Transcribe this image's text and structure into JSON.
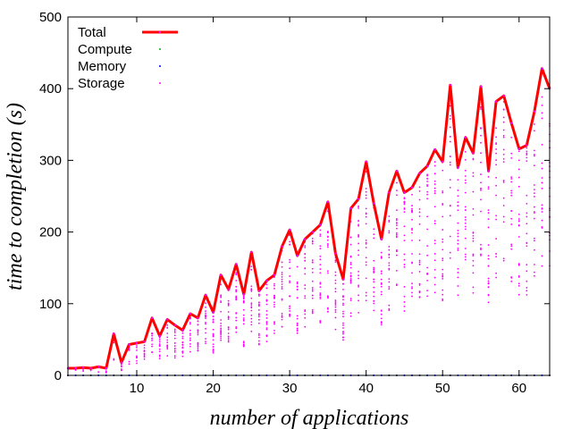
{
  "chart_data": {
    "type": "line",
    "xlabel": "number of applications",
    "ylabel": "time to completion (s)",
    "xlim": [
      1,
      64
    ],
    "ylim": [
      0,
      500
    ],
    "xticks": [
      10,
      20,
      30,
      40,
      50,
      60
    ],
    "yticks": [
      0,
      100,
      200,
      300,
      400,
      500
    ],
    "grid": false,
    "legend_position": "top-left",
    "series": [
      {
        "name": "Total",
        "style": "line",
        "color": "#ff0000",
        "x": [
          1,
          2,
          3,
          4,
          5,
          6,
          7,
          8,
          9,
          10,
          11,
          12,
          13,
          14,
          15,
          16,
          17,
          18,
          19,
          20,
          21,
          22,
          23,
          24,
          25,
          26,
          27,
          28,
          29,
          30,
          31,
          32,
          33,
          34,
          35,
          36,
          37,
          38,
          39,
          40,
          41,
          42,
          43,
          44,
          45,
          46,
          47,
          48,
          49,
          50,
          51,
          52,
          53,
          54,
          55,
          56,
          57,
          58,
          59,
          60,
          61,
          62,
          63,
          64
        ],
        "values": [
          10,
          10,
          11,
          10,
          12,
          10,
          58,
          18,
          43,
          45,
          47,
          80,
          55,
          78,
          70,
          63,
          86,
          80,
          112,
          88,
          140,
          120,
          155,
          113,
          172,
          118,
          132,
          140,
          180,
          203,
          167,
          190,
          200,
          210,
          242,
          170,
          134,
          233,
          246,
          298,
          240,
          190,
          255,
          285,
          255,
          262,
          282,
          292,
          315,
          298,
          405,
          290,
          332,
          310,
          403,
          285,
          382,
          390,
          352,
          316,
          321,
          368,
          428,
          400
        ]
      },
      {
        "name": "Compute",
        "style": "points",
        "color": "#00b000",
        "values_note": "",
        "level": 0
      },
      {
        "name": "Memory",
        "style": "points",
        "color": "#0000ff",
        "level": 0
      },
      {
        "name": "Storage",
        "style": "points",
        "color": "#ff00ff"
      }
    ]
  }
}
